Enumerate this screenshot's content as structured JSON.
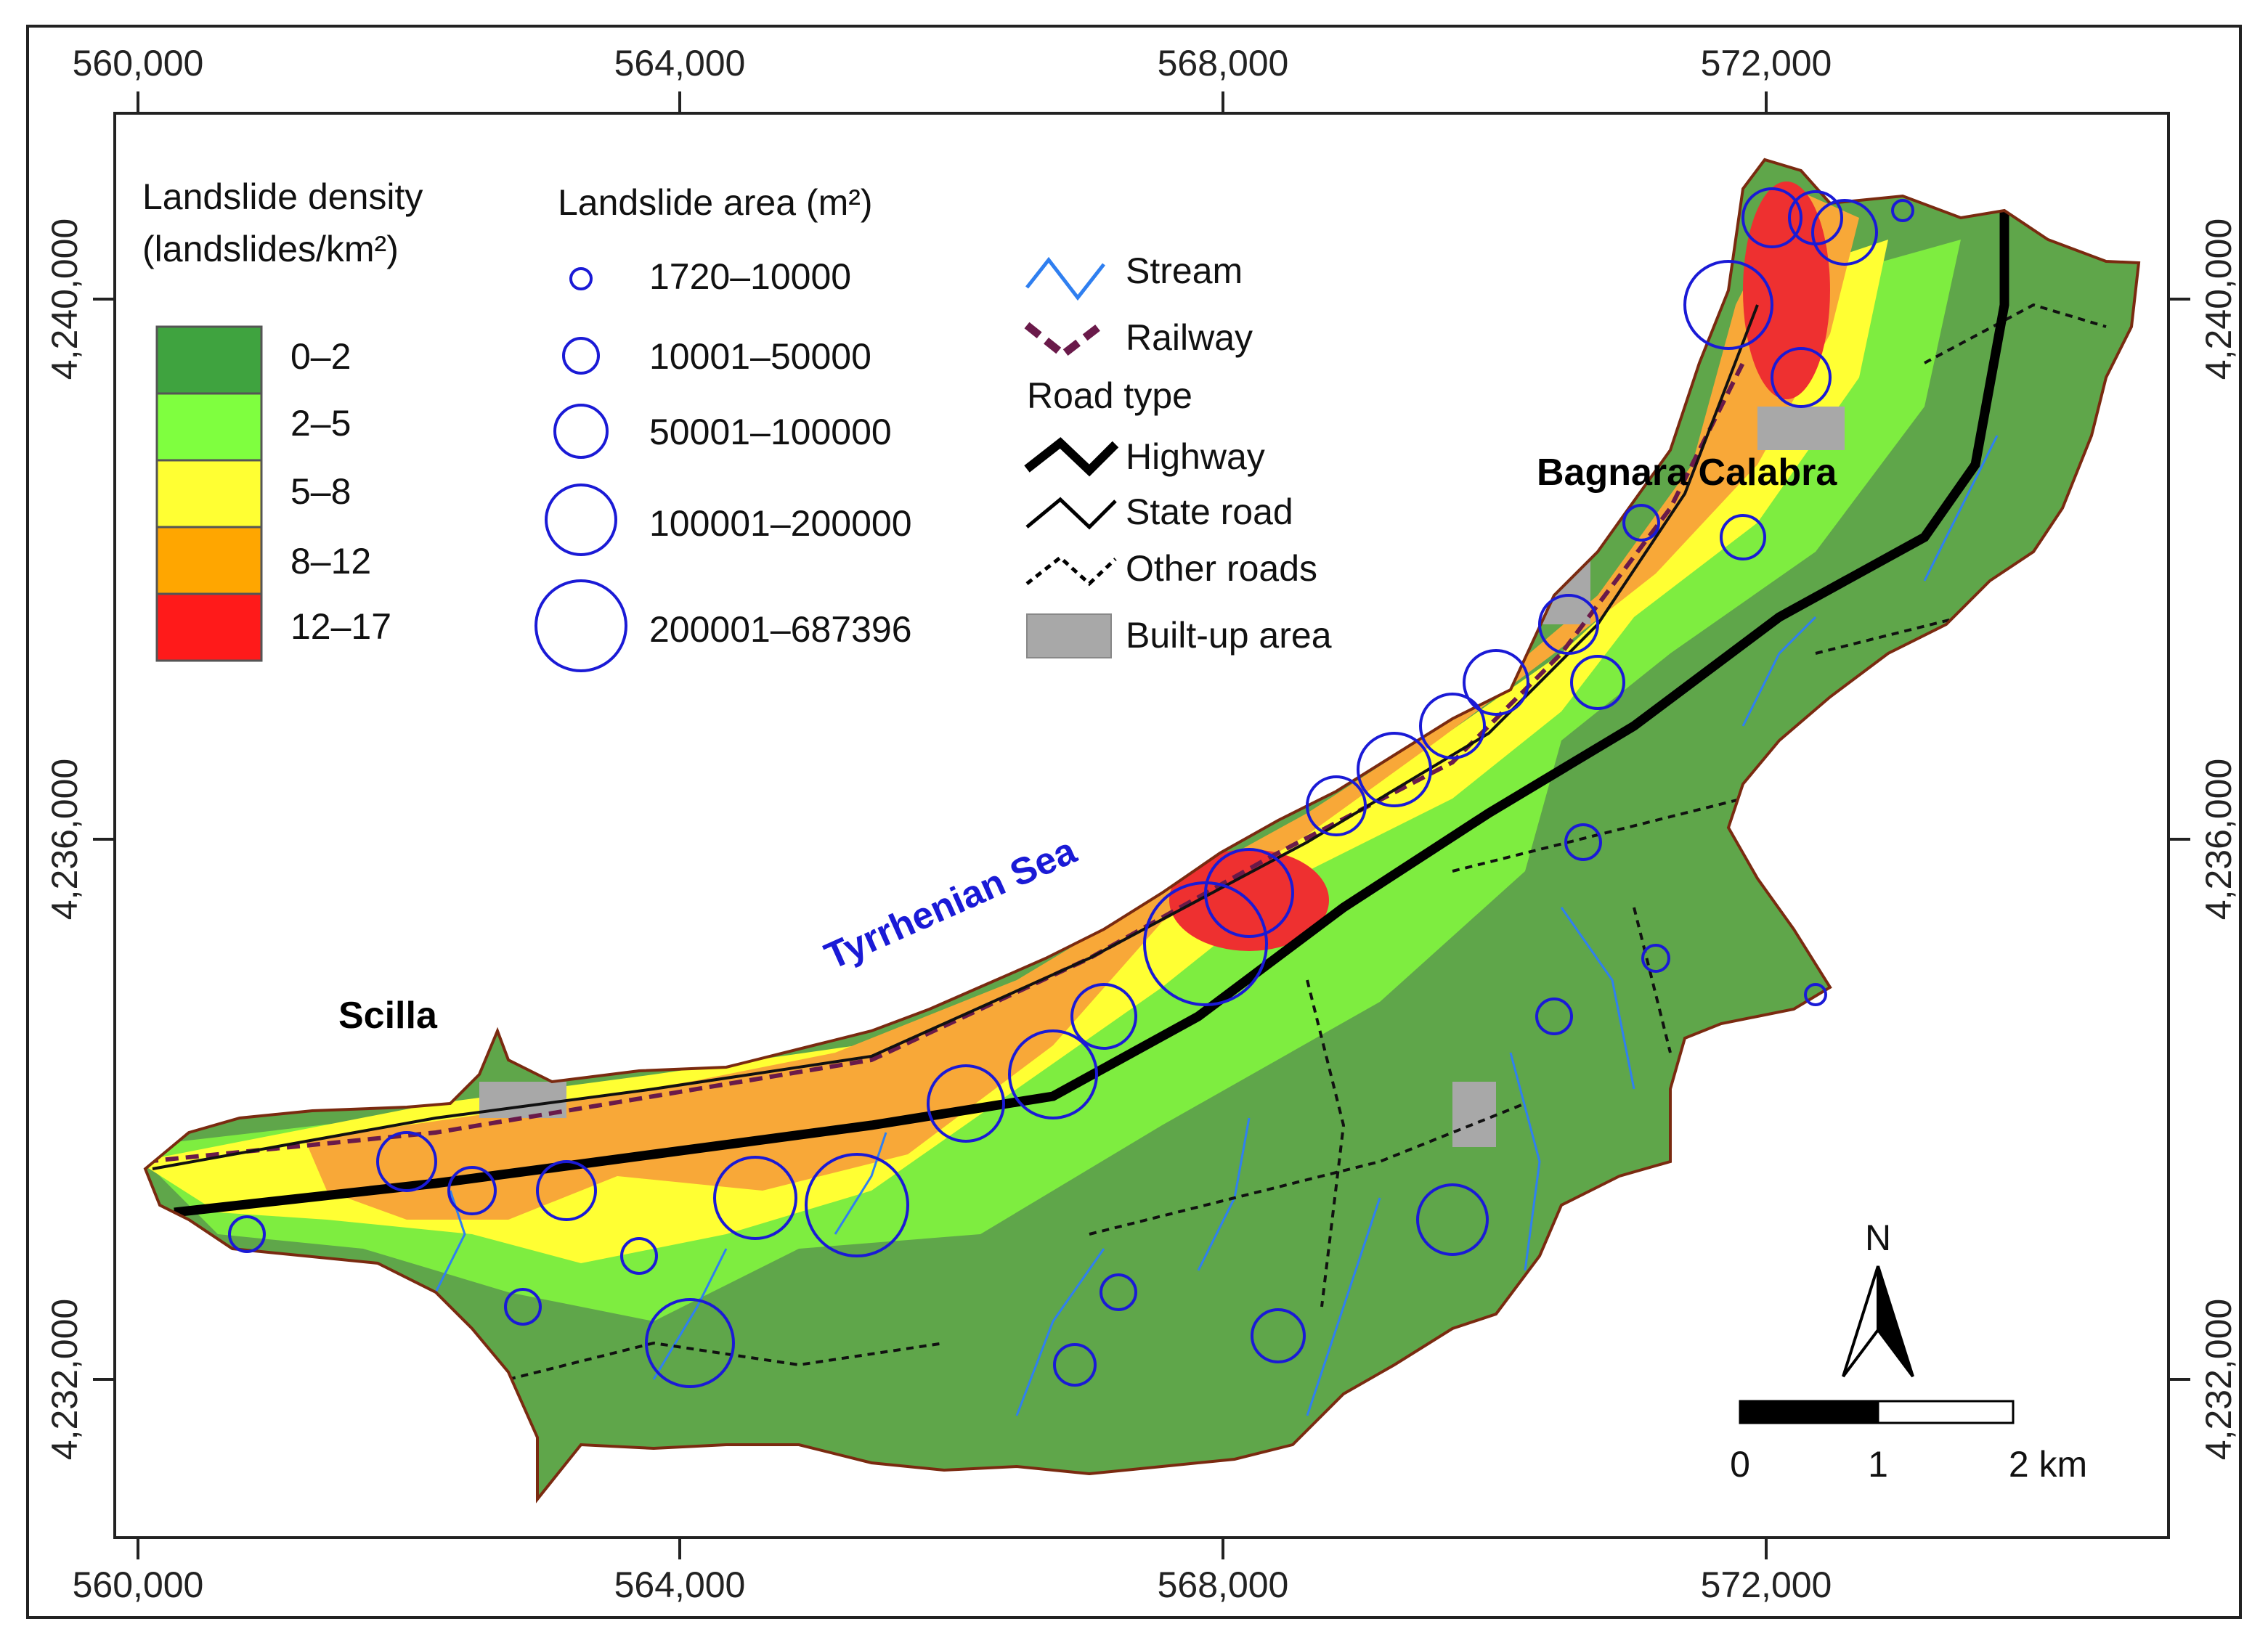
{
  "grid_labels": {
    "x": [
      "560,000",
      "564,000",
      "568,000",
      "572,000"
    ],
    "y": [
      "4,240,000",
      "4,236,000",
      "4,232,000"
    ]
  },
  "legend": {
    "density": {
      "title_line1": "Landslide density",
      "title_line2": "(landslides/km²)",
      "classes": [
        {
          "label": "0–2",
          "color": "#3fa33f"
        },
        {
          "label": "2–5",
          "color": "#7fff3f"
        },
        {
          "label": "5–8",
          "color": "#ffff33"
        },
        {
          "label": "8–12",
          "color": "#ffa600"
        },
        {
          "label": "12–17",
          "color": "#ff1a1a"
        }
      ]
    },
    "area": {
      "title": "Landslide area (m²)",
      "classes": [
        "1720–10000",
        "10001–50000",
        "50001–100000",
        "100001–200000",
        "200001–687396"
      ],
      "color": "#1a1ad6"
    },
    "lines": {
      "stream": "Stream",
      "railway": "Railway",
      "road_type_title": "Road type",
      "highway": "Highway",
      "state_road": "State road",
      "other_roads": "Other roads",
      "built_up": "Built-up area"
    }
  },
  "places": {
    "scilla": "Scilla",
    "bagnara": "Bagnara Calabra",
    "sea": "Tyrrhenian Sea"
  },
  "north_arrow": "N",
  "scale_bar": {
    "labels": [
      "0",
      "1",
      "2 km"
    ]
  },
  "colors": {
    "stream": "#2f7ff0",
    "railway": "#6a1a4a",
    "landslide_circle": "#1a1ad6",
    "built_up": "#a8a8a8",
    "coast": "#7a2a10"
  }
}
